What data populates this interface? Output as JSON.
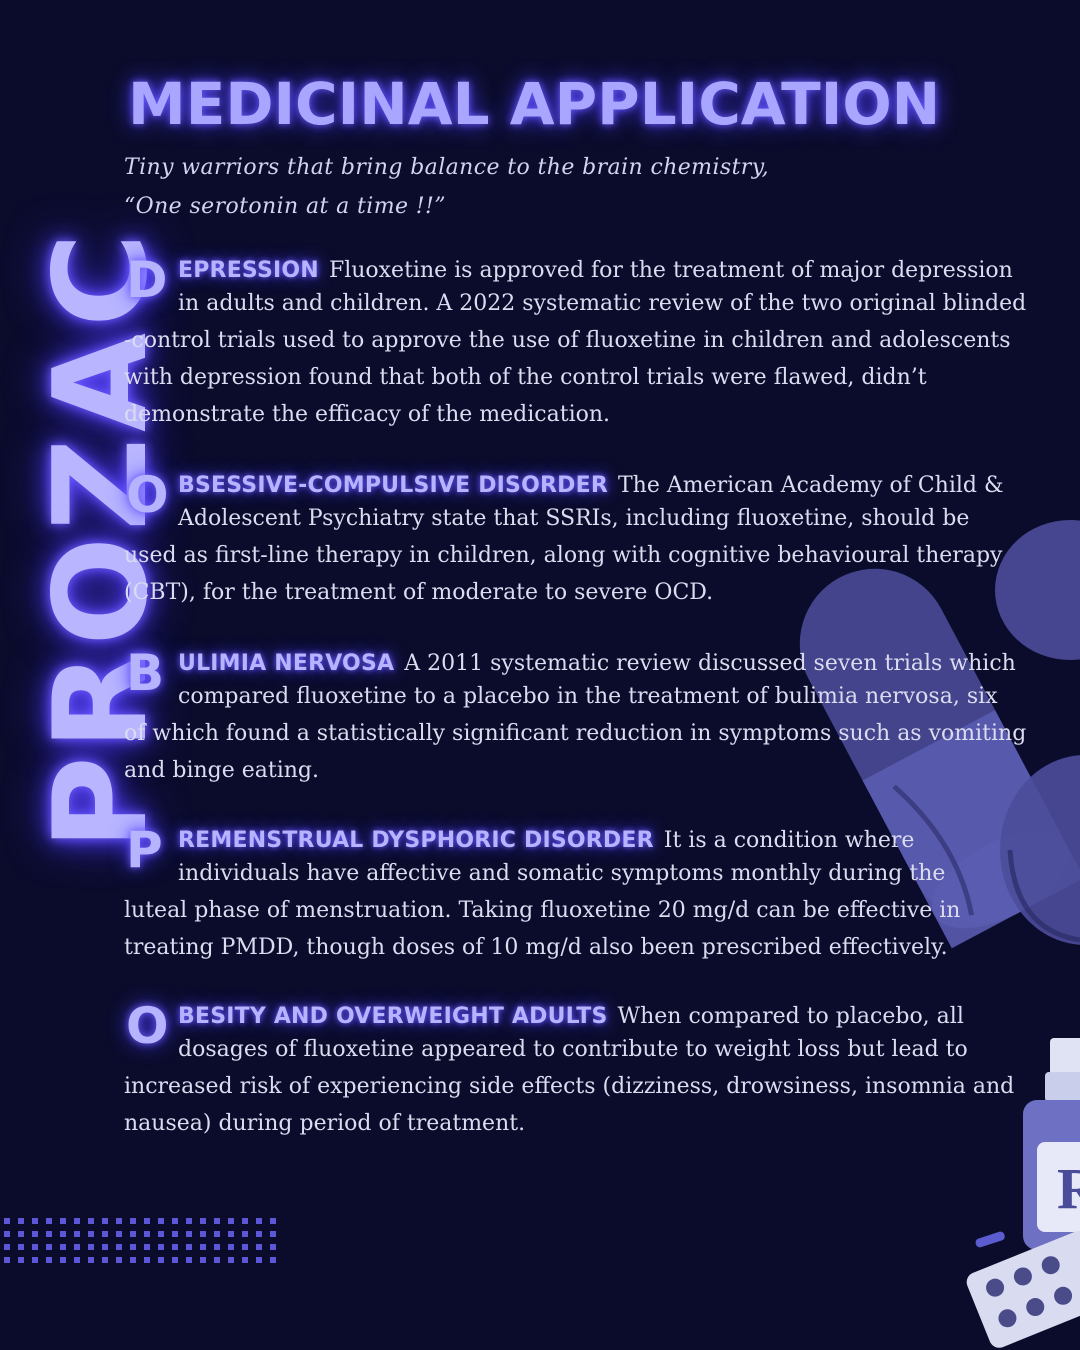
{
  "side_word": "PROZAC",
  "title": "MEDICINAL APPLICATION",
  "tagline": {
    "line1": "Tiny warriors that bring balance to the brain chemistry,",
    "line2": "“One serotonin at a time !!”"
  },
  "sections": [
    {
      "initial": "D",
      "heading": "EPRESSION",
      "first_line": "Fluoxetine is approved for the treatment of major depression",
      "second_line": "in adults and children. A 2022 systematic review of the two original blinded",
      "rest": "-control trials used to approve the use of fluoxetine in children and adolescents with depression found that both of the control trials were flawed, didn’t demonstrate the efficacy of the medication."
    },
    {
      "initial": "O",
      "heading": "BSESSIVE-COMPULSIVE DISORDER",
      "first_line": "The American Academy of Child &",
      "second_line": "Adolescent Psychiatry state that SSRIs, including fluoxetine, should be",
      "rest": "used as first-line therapy in children, along with cognitive behavioural therapy (CBT), for the treatment of moderate to severe OCD."
    },
    {
      "initial": "B",
      "heading": "ULIMIA NERVOSA",
      "first_line": "A 2011 systematic review discussed seven trials which",
      "second_line": "compared fluoxetine to a placebo in the treatment of bulimia nervosa, six",
      "rest": "of which found a statistically significant reduction in symptoms such as vomiting and binge eating."
    },
    {
      "initial": "P",
      "heading": "REMENSTRUAL DYSPHORIC DISORDER",
      "first_line": "It is a condition where",
      "second_line": "individuals have affective and somatic symptoms monthly during the",
      "rest": "luteal phase of menstruation. Taking fluoxetine 20 mg/d can be effective in treating PMDD, though doses of 10 mg/d also been prescribed effectively."
    },
    {
      "initial": "O",
      "heading": "BESITY AND OVERWEIGHT ADULTS",
      "first_line": "When compared to placebo, all",
      "second_line": "dosages of fluoxetine appeared to contribute to weight loss but lead to",
      "rest": "increased risk of experiencing side effects (dizziness, drowsiness, insomnia and nausea) during period of treatment."
    }
  ],
  "bottle_label": "R",
  "colors": {
    "background": "#0b0c2c",
    "glow": "#6d5cff",
    "heading_text": "#b6b3ff",
    "body_text": "#dcdcf0",
    "capsule": "#5657a8"
  },
  "icons": [
    "capsule-icon",
    "pill-bottle-icon",
    "blister-pack-icon",
    "dot-grid-pattern"
  ]
}
